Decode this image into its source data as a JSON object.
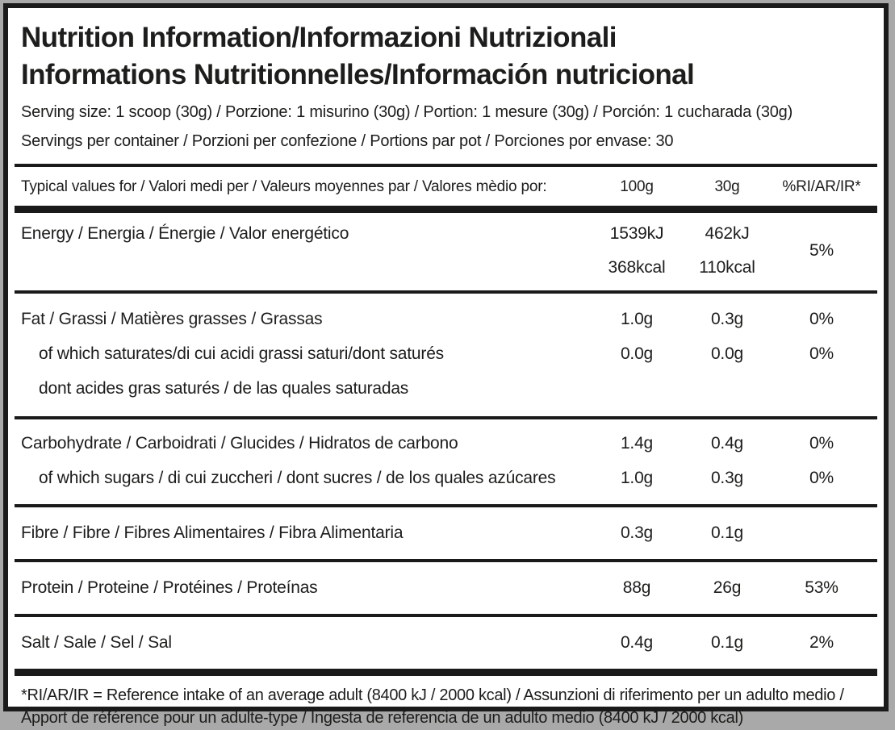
{
  "header": {
    "title_line1": "Nutrition Information/Informazioni Nutrizionali",
    "title_line2": "Informations Nutritionnelles/Información nutricional",
    "serving_size": "Serving size: 1 scoop (30g) / Porzione: 1 misurino (30g) / Portion: 1 mesure (30g) / Porción: 1 cucharada (30g)",
    "servings_per_container": "Servings per container / Porzioni per confezione / Portions par pot / Porciones por envase: 30"
  },
  "columns": {
    "label": "Typical values for / Valori medi per / Valeurs moyennes par / Valores mèdio por:",
    "col_100g": "100g",
    "col_30g": "30g",
    "col_ri": "%RI/AR/IR*"
  },
  "rows": {
    "energy": {
      "label": "Energy / Energia / Énergie / Valor energético",
      "kj_100": "1539kJ",
      "kj_30": "462kJ",
      "kcal_100": "368kcal",
      "kcal_30": "110kcal",
      "ri": "5%"
    },
    "fat": {
      "label": "Fat / Grassi / Matières grasses / Grassas",
      "v100": "1.0g",
      "v30": "0.3g",
      "ri": "0%"
    },
    "fat_saturates": {
      "label": "of which saturates/di cui acidi grassi saturi/dont saturés",
      "v100": "0.0g",
      "v30": "0.0g",
      "ri": "0%"
    },
    "fat_saturates_cont": {
      "label": "dont acides gras saturés / de las quales saturadas"
    },
    "carbohydrate": {
      "label": "Carbohydrate / Carboidrati / Glucides / Hidratos de carbono",
      "v100": "1.4g",
      "v30": "0.4g",
      "ri": "0%"
    },
    "sugars": {
      "label": "of which sugars / di cui zuccheri / dont sucres / de los quales azúcares",
      "v100": "1.0g",
      "v30": "0.3g",
      "ri": "0%"
    },
    "fibre": {
      "label": "Fibre / Fibre / Fibres Alimentaires / Fibra Alimentaria",
      "v100": "0.3g",
      "v30": "0.1g",
      "ri": ""
    },
    "protein": {
      "label": "Protein / Proteine / Protéines / Proteínas",
      "v100": "88g",
      "v30": "26g",
      "ri": "53%"
    },
    "salt": {
      "label": "Salt / Sale / Sel / Sal",
      "v100": "0.4g",
      "v30": "0.1g",
      "ri": "2%"
    }
  },
  "footnote": "*RI/AR/IR = Reference intake of an average adult (8400 kJ / 2000 kcal)  / Assunzioni di riferimento per un adulto medio / Apport de référence pour un adulte-type / Ingesta de referencia de un adulto medio (8400 kJ / 2000 kcal)",
  "colors": {
    "text": "#1d1d1b",
    "rule": "#1a1a1a",
    "panel_background": "#ffffff",
    "page_background": "#a9a9a9"
  }
}
